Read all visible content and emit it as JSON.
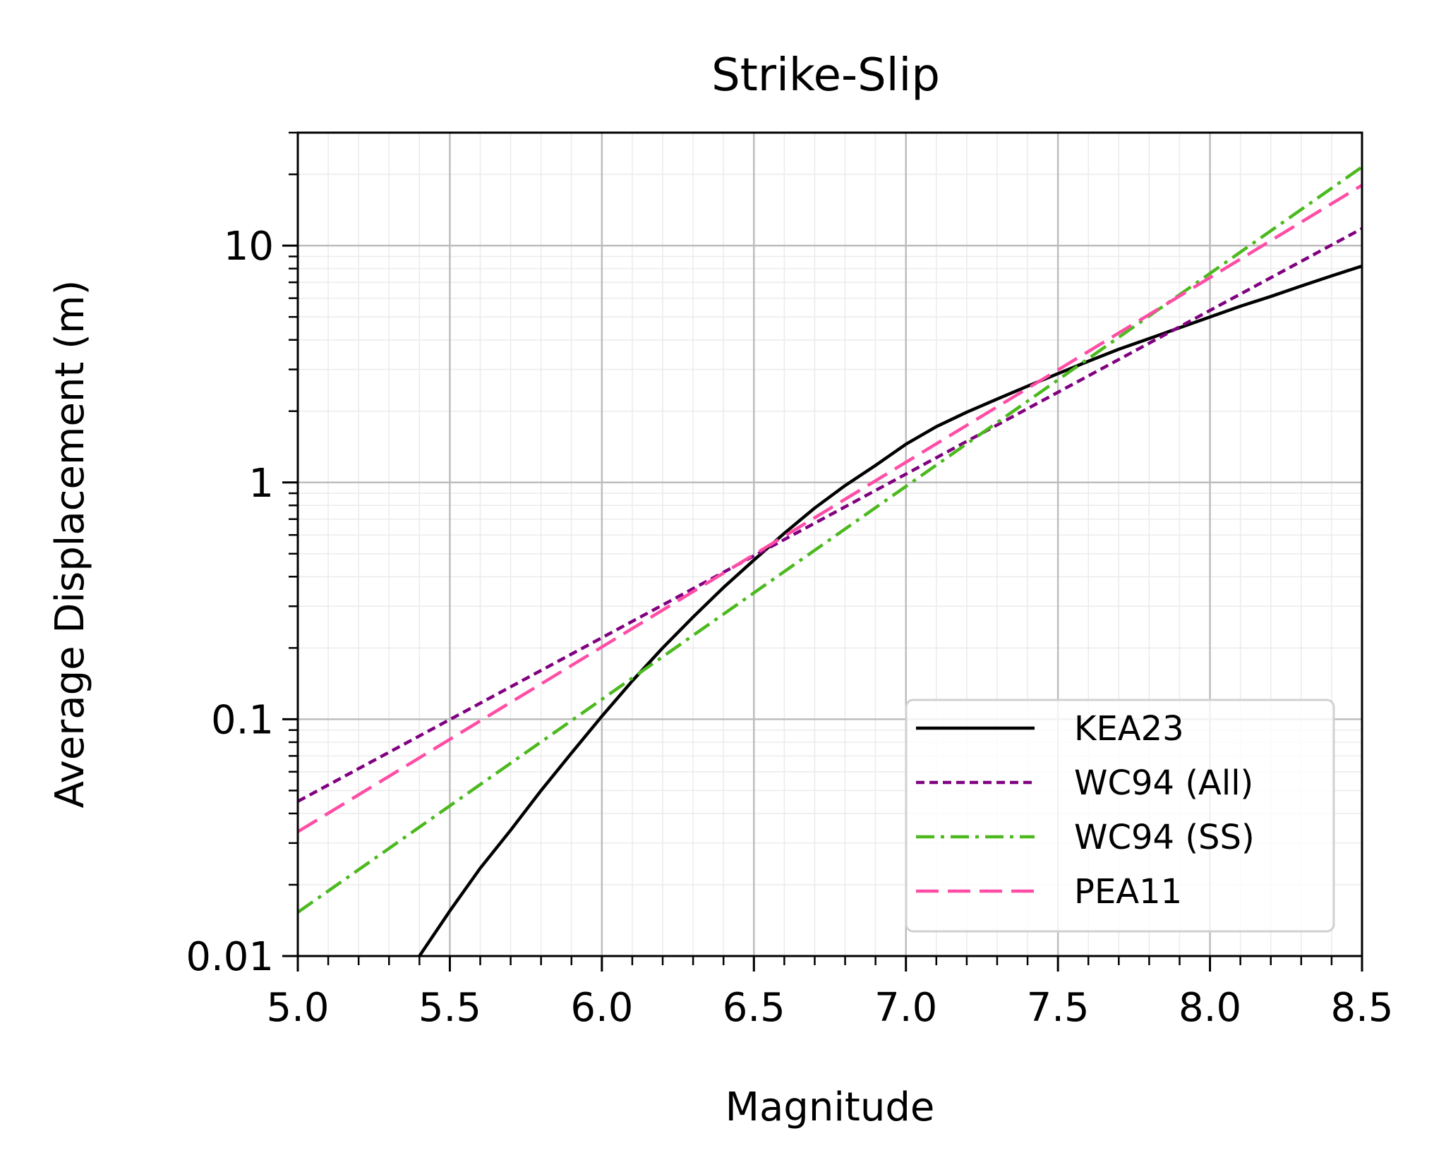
{
  "chart_data": {
    "type": "line",
    "title": "Strike-Slip",
    "xlabel": "Magnitude",
    "ylabel": "Average Displacement (m)",
    "xlim": [
      5.0,
      8.5
    ],
    "ylim": [
      0.01,
      30
    ],
    "yscale": "log",
    "grid": true,
    "legend_position": "lower right",
    "x_ticks": [
      "5.0",
      "5.5",
      "6.0",
      "6.5",
      "7.0",
      "7.5",
      "8.0",
      "8.5"
    ],
    "y_ticks": [
      "0.01",
      "0.1",
      "1",
      "10"
    ],
    "series": [
      {
        "name": "KEA23",
        "color": "#000000",
        "dash": "solid",
        "x": [
          5.4,
          5.5,
          5.6,
          5.7,
          5.8,
          5.9,
          6.0,
          6.1,
          6.2,
          6.3,
          6.4,
          6.5,
          6.6,
          6.7,
          6.8,
          6.9,
          7.0,
          7.1,
          7.2,
          7.3,
          7.4,
          7.5,
          7.6,
          7.7,
          7.8,
          7.9,
          8.0,
          8.1,
          8.2,
          8.3,
          8.4,
          8.5
        ],
        "y": [
          0.01,
          0.0155,
          0.0235,
          0.034,
          0.05,
          0.072,
          0.103,
          0.145,
          0.2,
          0.27,
          0.36,
          0.47,
          0.61,
          0.78,
          0.97,
          1.18,
          1.45,
          1.72,
          1.98,
          2.25,
          2.55,
          2.88,
          3.25,
          3.65,
          4.05,
          4.5,
          5.0,
          5.55,
          6.1,
          6.75,
          7.45,
          8.2
        ]
      },
      {
        "name": "WC94 (All)",
        "color": "#800080",
        "dash": "short-dash",
        "x": [
          5.0,
          8.5
        ],
        "y": [
          0.045,
          11.8
        ]
      },
      {
        "name": "WC94 (SS)",
        "color": "#4cb91e",
        "dash": "dash-dot",
        "x": [
          5.0,
          8.5
        ],
        "y": [
          0.0153,
          21.5
        ]
      },
      {
        "name": "PEA11",
        "color": "#ff4da6",
        "dash": "long-dash",
        "x": [
          5.0,
          8.5
        ],
        "y": [
          0.0335,
          18.0
        ]
      }
    ]
  }
}
